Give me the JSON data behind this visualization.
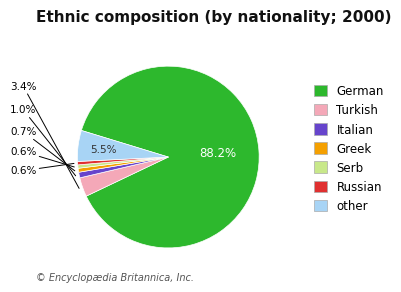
{
  "title": "Ethnic composition (by nationality; 2000)",
  "labels": [
    "German",
    "Turkish",
    "Italian",
    "Greek",
    "Serb",
    "Russian",
    "other"
  ],
  "values": [
    88.2,
    3.4,
    1.0,
    0.7,
    0.6,
    0.6,
    5.5
  ],
  "colors": [
    "#2db82d",
    "#f4a8b8",
    "#6644cc",
    "#f5a000",
    "#c8e88a",
    "#e03030",
    "#a8d4f5"
  ],
  "pct_labels": [
    "88.2%",
    "3.4%",
    "1.0%",
    "0.7%",
    "0.6%",
    "0.6%",
    "5.5%"
  ],
  "footnote": "© Encyclopædia Britannica, Inc.",
  "title_fontsize": 11,
  "legend_fontsize": 8.5,
  "footnote_fontsize": 7,
  "background_color": "#ffffff"
}
